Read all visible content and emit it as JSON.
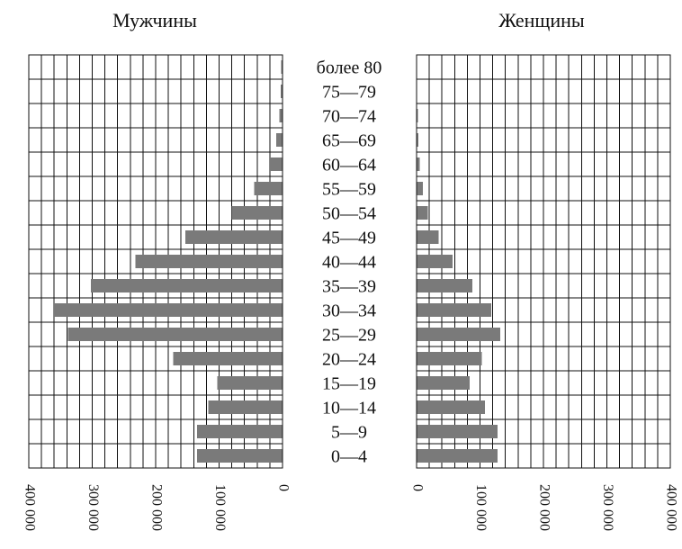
{
  "chart_data": {
    "type": "bar",
    "orientation": "horizontal",
    "layout": "population-pyramid",
    "panels": [
      {
        "title": "Мужчины",
        "direction": "left"
      },
      {
        "title": "Женщины",
        "direction": "right"
      }
    ],
    "categories": [
      "0—4",
      "5—9",
      "10—14",
      "15—19",
      "20—24",
      "25—29",
      "30—34",
      "35—39",
      "40—44",
      "45—49",
      "50—54",
      "55—59",
      "60—64",
      "65—69",
      "70—74",
      "75—79",
      "более 80"
    ],
    "series": [
      {
        "name": "Мужчины",
        "values": [
          135000,
          135000,
          117000,
          103000,
          172000,
          338000,
          360000,
          302000,
          232000,
          153000,
          80000,
          45000,
          20000,
          10000,
          5000,
          3000,
          2000
        ]
      },
      {
        "name": "Женщины",
        "values": [
          128000,
          128000,
          108000,
          84000,
          103000,
          132000,
          118000,
          88000,
          57000,
          35000,
          18000,
          10000,
          5000,
          3000,
          2000,
          1000,
          1000
        ]
      }
    ],
    "xlim": [
      0,
      400000
    ],
    "xtick_values": [
      0,
      100000,
      200000,
      300000,
      400000
    ],
    "xtick_labels": [
      "0",
      "100 000",
      "200 000",
      "300 000",
      "400 000"
    ],
    "grid": true,
    "grid_step": 20000,
    "colors": {
      "bar": "#7a7a7a",
      "grid": "#111111",
      "text": "#111111",
      "background": "#ffffff"
    }
  }
}
